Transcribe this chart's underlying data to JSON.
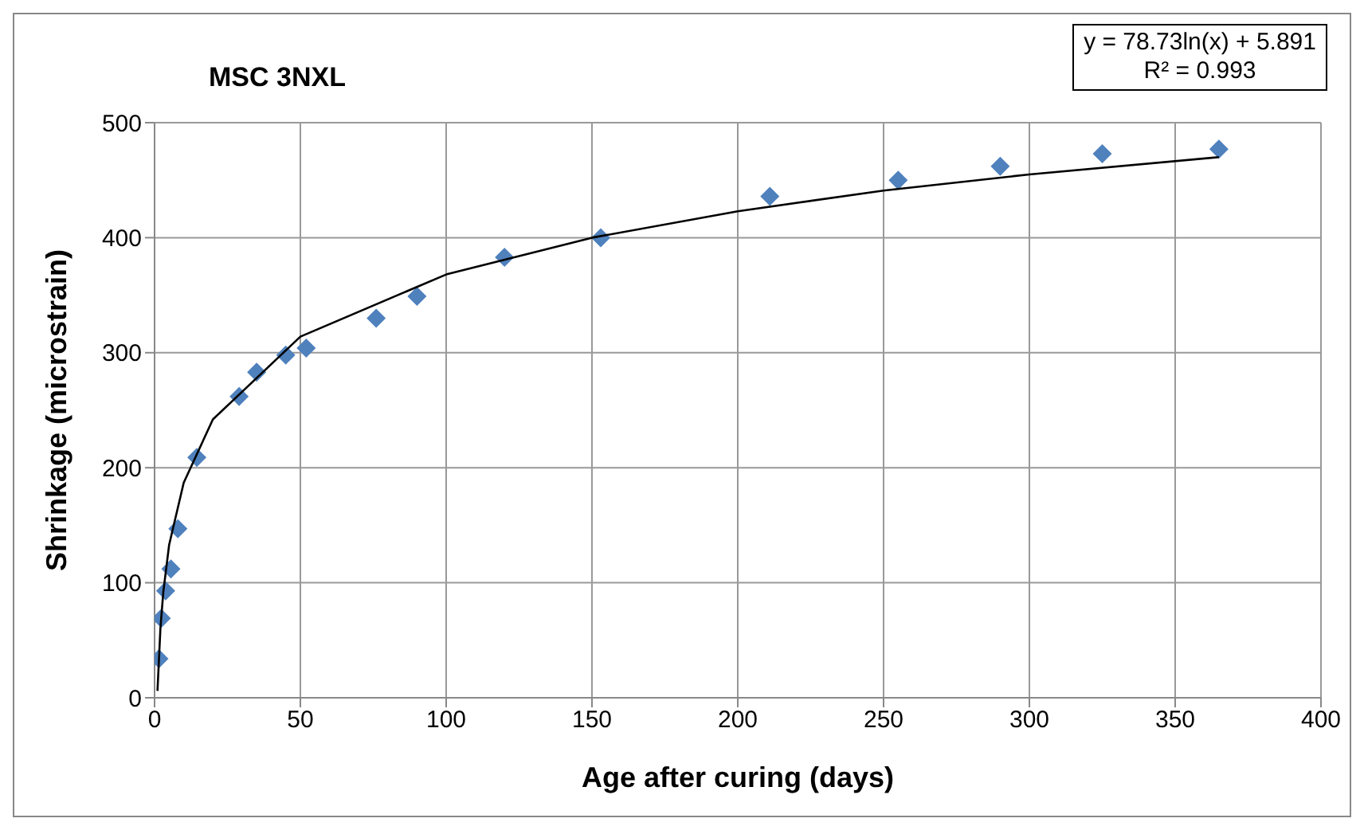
{
  "chart_data": {
    "type": "scatter",
    "title": "MSC 3NXL",
    "xlabel": "Age after curing (days)",
    "ylabel": "Shrinkage (microstrain)",
    "annotations": [
      "y = 78.73ln(x) + 5.891",
      "R² = 0.993"
    ],
    "series": [
      {
        "color": "#4f81bd",
        "marker": "diamond",
        "x": [
          1.5,
          2.3,
          3.8,
          5.6,
          8,
          14.5,
          29,
          35,
          45,
          52,
          76,
          90,
          120,
          153,
          211,
          255,
          290,
          325,
          365
        ],
        "values": [
          34,
          69,
          93,
          112,
          147,
          209,
          262,
          283,
          298,
          304,
          330,
          349,
          383,
          400,
          436,
          450,
          462,
          473,
          477
        ]
      },
      {
        "type": "line",
        "color": "#000000",
        "marker": "none",
        "x": [
          1,
          2,
          3,
          5,
          10,
          20,
          50,
          100,
          150,
          200,
          250,
          300,
          365
        ],
        "values": [
          6,
          60,
          92,
          133,
          187,
          242,
          314,
          368,
          400,
          423,
          441,
          455,
          470
        ]
      }
    ],
    "xlim": [
      0,
      400
    ],
    "xticks": [
      0,
      50,
      100,
      150,
      200,
      250,
      300,
      350,
      400
    ],
    "ylim": [
      0,
      500
    ],
    "yticks": [
      0,
      100,
      200,
      300,
      400,
      500
    ],
    "grid": true
  }
}
